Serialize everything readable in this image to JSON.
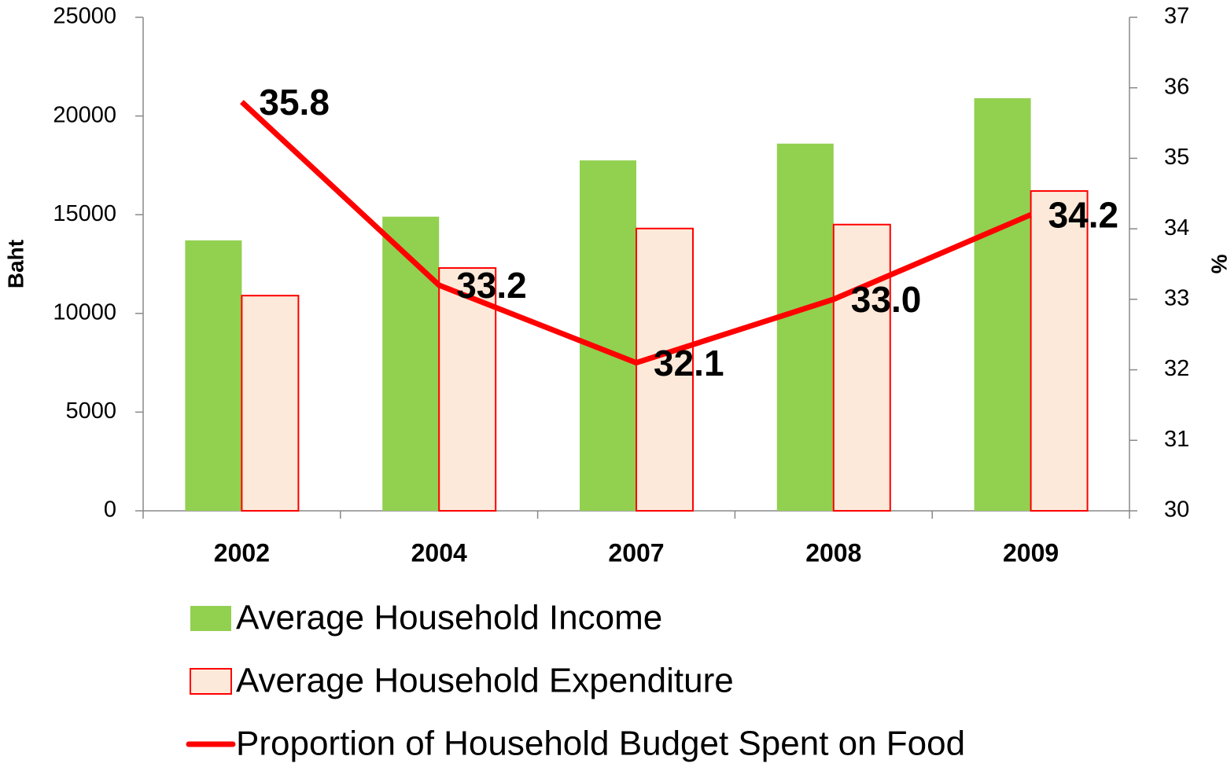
{
  "chart_data": {
    "type": "bar-line",
    "categories": [
      "2002",
      "2004",
      "2007",
      "2008",
      "2009"
    ],
    "y_label": "Baht",
    "y2_label": "%",
    "ylim": [
      0,
      25000
    ],
    "yticks": [
      0,
      5000,
      10000,
      15000,
      20000,
      25000
    ],
    "y2lim": [
      30,
      37
    ],
    "y2ticks": [
      30,
      31,
      32,
      33,
      34,
      35,
      36,
      37
    ],
    "series": [
      {
        "name": "Average Household Income",
        "type": "bar",
        "color": "#92d050",
        "values": [
          13700,
          14900,
          17750,
          18600,
          20900
        ]
      },
      {
        "name": "Average Household Expenditure",
        "type": "bar",
        "color": "#fde9d9",
        "edge_color": "#ff0000",
        "values": [
          10900,
          12300,
          14300,
          14500,
          16200
        ]
      },
      {
        "name": "Proportion of Household Budget Spent on Food",
        "type": "line",
        "axis": "y2",
        "color": "#ff0000",
        "values": [
          35.8,
          33.2,
          32.1,
          33.0,
          34.2
        ],
        "value_labels": [
          "35.8",
          "33.2",
          "32.1",
          "33.0",
          "34.2"
        ]
      }
    ]
  }
}
